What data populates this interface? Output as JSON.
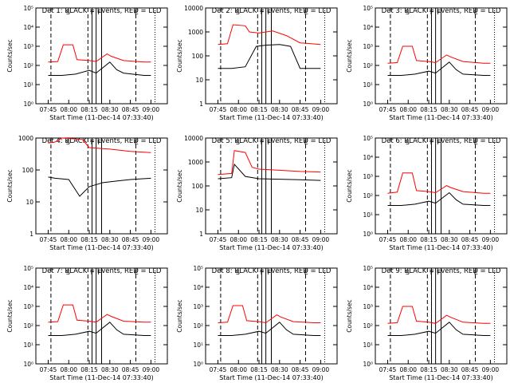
{
  "colors": {
    "events": "#000000",
    "lld": "#ff0000",
    "background": "#ffffff"
  },
  "shared": {
    "x_ticks": [
      "07:45",
      "08:00",
      "08:15",
      "08:30",
      "08:45",
      "09:00"
    ],
    "xlabel": "Start Time (11-Dec-14 07:33:40)",
    "ylabel": "Counts/sec",
    "marker_letters": [
      "S",
      "F",
      "F",
      "E"
    ]
  },
  "chart_data": [
    {
      "type": "line",
      "title": "Det 1: BLACK = Events, RED = LLD",
      "ylim": [
        1,
        100000
      ],
      "y_ticks": [
        "10⁰",
        "10¹",
        "10²",
        "10³",
        "10⁴",
        "10⁵"
      ],
      "log": true,
      "series": [
        {
          "name": "Events",
          "x": [
            "07:45",
            "07:55",
            "08:05",
            "08:15",
            "08:20",
            "08:30",
            "08:35",
            "08:40",
            "08:55",
            "09:00"
          ],
          "values": [
            30,
            30,
            35,
            55,
            40,
            150,
            60,
            40,
            30,
            30
          ]
        },
        {
          "name": "LLD",
          "x": [
            "07:45",
            "07:52",
            "07:56",
            "08:03",
            "08:06",
            "08:15",
            "08:20",
            "08:28",
            "08:31",
            "08:40",
            "08:55",
            "09:00"
          ],
          "values": [
            150,
            160,
            1200,
            1200,
            200,
            180,
            160,
            400,
            300,
            180,
            150,
            150
          ]
        }
      ]
    },
    {
      "type": "line",
      "title": "Det 2: BLACK = Events, RED = LLD",
      "ylim": [
        1,
        10000
      ],
      "y_ticks": [
        "1",
        "10",
        "100",
        "1000",
        "10000"
      ],
      "log": true,
      "series": [
        {
          "name": "Events",
          "x": [
            "07:45",
            "07:55",
            "08:05",
            "08:13",
            "08:20",
            "08:30",
            "08:38",
            "08:45",
            "09:00"
          ],
          "values": [
            30,
            30,
            35,
            250,
            280,
            300,
            250,
            30,
            30
          ]
        },
        {
          "name": "LLD",
          "x": [
            "07:45",
            "07:52",
            "07:56",
            "08:05",
            "08:08",
            "08:15",
            "08:25",
            "08:35",
            "08:45",
            "09:00"
          ],
          "values": [
            300,
            320,
            2000,
            1800,
            1000,
            900,
            1100,
            700,
            350,
            300
          ]
        }
      ]
    },
    {
      "type": "line",
      "title": "Det 3: BLACK = Events, RED = LLD",
      "ylim": [
        1,
        100000
      ],
      "y_ticks": [
        "10⁰",
        "10¹",
        "10²",
        "10³",
        "10⁴",
        "10⁵"
      ],
      "log": true,
      "series": [
        {
          "name": "Events",
          "x": [
            "07:45",
            "07:55",
            "08:05",
            "08:15",
            "08:20",
            "08:30",
            "08:35",
            "08:40",
            "08:55",
            "09:00"
          ],
          "values": [
            30,
            30,
            35,
            50,
            40,
            150,
            60,
            35,
            30,
            30
          ]
        },
        {
          "name": "LLD",
          "x": [
            "07:45",
            "07:52",
            "07:56",
            "08:03",
            "08:06",
            "08:15",
            "08:20",
            "08:28",
            "08:31",
            "08:40",
            "08:55",
            "09:00"
          ],
          "values": [
            130,
            140,
            1000,
            1000,
            180,
            160,
            140,
            350,
            280,
            160,
            130,
            130
          ]
        }
      ]
    },
    {
      "type": "line",
      "title": "Det 4: BLACK = Events, RED = LLD",
      "ylim": [
        1,
        1000
      ],
      "y_ticks": [
        "1",
        "10",
        "100",
        "1000"
      ],
      "log": true,
      "series": [
        {
          "name": "Events",
          "x": [
            "07:45",
            "07:50",
            "08:00",
            "08:08",
            "08:15",
            "08:25",
            "08:35",
            "08:45",
            "09:00"
          ],
          "values": [
            60,
            55,
            50,
            15,
            30,
            40,
            45,
            50,
            55
          ]
        },
        {
          "name": "LLD",
          "x": [
            "07:45",
            "07:50",
            "07:55",
            "08:10",
            "08:15",
            "08:30",
            "08:45",
            "09:00"
          ],
          "values": [
            700,
            750,
            1000,
            900,
            500,
            450,
            380,
            350
          ]
        }
      ]
    },
    {
      "type": "line",
      "title": "Det 5: BLACK = Events, RED = LLD",
      "ylim": [
        1,
        10000
      ],
      "y_ticks": [
        "1",
        "10",
        "100",
        "1000",
        "10000"
      ],
      "log": true,
      "series": [
        {
          "name": "Events",
          "x": [
            "07:45",
            "07:55",
            "07:57",
            "08:05",
            "08:15",
            "08:30",
            "08:45",
            "09:00"
          ],
          "values": [
            200,
            220,
            800,
            250,
            200,
            190,
            180,
            170
          ]
        },
        {
          "name": "LLD",
          "x": [
            "07:45",
            "07:55",
            "07:57",
            "08:05",
            "08:10",
            "08:15",
            "08:30",
            "08:45",
            "09:00"
          ],
          "values": [
            300,
            330,
            3000,
            2500,
            600,
            500,
            450,
            400,
            380
          ]
        }
      ]
    },
    {
      "type": "line",
      "title": "Det 6: BLACK = Events, RED = LLD",
      "ylim": [
        1,
        100000
      ],
      "y_ticks": [
        "10⁰",
        "10¹",
        "10²",
        "10³",
        "10⁴",
        "10⁵"
      ],
      "log": true,
      "series": [
        {
          "name": "Events",
          "x": [
            "07:45",
            "07:55",
            "08:05",
            "08:15",
            "08:20",
            "08:30",
            "08:35",
            "08:40",
            "08:55",
            "09:00"
          ],
          "values": [
            30,
            30,
            35,
            50,
            40,
            140,
            60,
            35,
            30,
            30
          ]
        },
        {
          "name": "LLD",
          "x": [
            "07:45",
            "07:52",
            "07:56",
            "08:03",
            "08:06",
            "08:15",
            "08:20",
            "08:28",
            "08:31",
            "08:40",
            "08:55",
            "09:00"
          ],
          "values": [
            130,
            150,
            1500,
            1500,
            180,
            160,
            140,
            330,
            260,
            160,
            130,
            130
          ]
        }
      ]
    },
    {
      "type": "line",
      "title": "Det 7: BLACK = Events, RED = LLD",
      "ylim": [
        1,
        100000
      ],
      "y_ticks": [
        "10⁰",
        "10¹",
        "10²",
        "10³",
        "10⁴",
        "10⁵"
      ],
      "log": true,
      "series": [
        {
          "name": "Events",
          "x": [
            "07:45",
            "07:55",
            "08:05",
            "08:15",
            "08:20",
            "08:30",
            "08:35",
            "08:40",
            "08:55",
            "09:00"
          ],
          "values": [
            30,
            30,
            35,
            50,
            40,
            150,
            60,
            35,
            30,
            30
          ]
        },
        {
          "name": "LLD",
          "x": [
            "07:45",
            "07:52",
            "07:56",
            "08:03",
            "08:06",
            "08:15",
            "08:20",
            "08:28",
            "08:31",
            "08:40",
            "08:55",
            "09:00"
          ],
          "values": [
            150,
            160,
            1200,
            1200,
            190,
            170,
            150,
            380,
            300,
            170,
            150,
            150
          ]
        }
      ]
    },
    {
      "type": "line",
      "title": "Det 8: BLACK = Events, RED = LLD",
      "ylim": [
        1,
        100000
      ],
      "y_ticks": [
        "10⁰",
        "10¹",
        "10²",
        "10³",
        "10⁴",
        "10⁵"
      ],
      "log": true,
      "series": [
        {
          "name": "Events",
          "x": [
            "07:45",
            "07:55",
            "08:05",
            "08:15",
            "08:20",
            "08:30",
            "08:35",
            "08:40",
            "08:55",
            "09:00"
          ],
          "values": [
            30,
            30,
            35,
            50,
            40,
            150,
            60,
            35,
            30,
            30
          ]
        },
        {
          "name": "LLD",
          "x": [
            "07:45",
            "07:52",
            "07:56",
            "08:03",
            "08:06",
            "08:15",
            "08:20",
            "08:28",
            "08:31",
            "08:40",
            "08:55",
            "09:00"
          ],
          "values": [
            140,
            150,
            1100,
            1100,
            180,
            160,
            140,
            360,
            280,
            160,
            140,
            140
          ]
        }
      ]
    },
    {
      "type": "line",
      "title": "Det 9: BLACK = Events, RED = LLD",
      "ylim": [
        1,
        100000
      ],
      "y_ticks": [
        "10⁰",
        "10¹",
        "10²",
        "10³",
        "10⁴",
        "10⁵"
      ],
      "log": true,
      "series": [
        {
          "name": "Events",
          "x": [
            "07:45",
            "07:55",
            "08:05",
            "08:15",
            "08:20",
            "08:30",
            "08:35",
            "08:40",
            "08:55",
            "09:00"
          ],
          "values": [
            30,
            30,
            35,
            50,
            40,
            150,
            60,
            35,
            30,
            30
          ]
        },
        {
          "name": "LLD",
          "x": [
            "07:45",
            "07:52",
            "07:56",
            "08:03",
            "08:06",
            "08:15",
            "08:20",
            "08:28",
            "08:31",
            "08:40",
            "08:55",
            "09:00"
          ],
          "values": [
            130,
            140,
            1000,
            1000,
            170,
            150,
            130,
            340,
            270,
            150,
            130,
            130
          ]
        }
      ]
    }
  ]
}
